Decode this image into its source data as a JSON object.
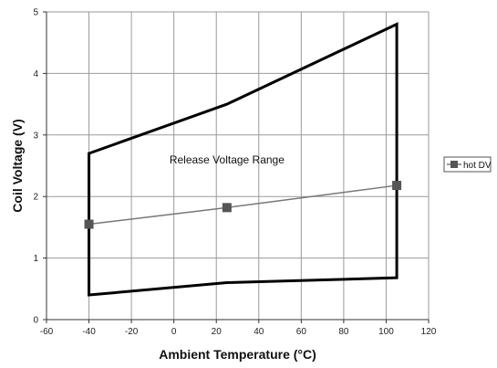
{
  "chart_data": {
    "type": "line",
    "title": "",
    "xlabel": "Ambient Temperature (°C)",
    "ylabel": "Coil Voltage (V)",
    "xlim": [
      -60,
      120
    ],
    "ylim": [
      0,
      5
    ],
    "x_ticks": [
      -60,
      -40,
      -20,
      0,
      20,
      40,
      60,
      80,
      100,
      120
    ],
    "y_ticks": [
      0,
      1,
      2,
      3,
      4,
      5
    ],
    "grid": true,
    "series": [
      {
        "name": "hot DV",
        "x": [
          -40,
          25,
          105
        ],
        "values": [
          1.55,
          1.82,
          2.18
        ],
        "color": "#777777",
        "marker_color": "#555555",
        "marker": "square"
      }
    ],
    "envelope": {
      "x": [
        -40,
        25,
        105,
        105,
        25,
        -40
      ],
      "y": [
        2.7,
        3.5,
        4.8,
        0.68,
        0.6,
        0.4
      ],
      "color": "#000000"
    },
    "annotation": {
      "text": "Release Voltage Range",
      "x": 25,
      "y": 2.6
    },
    "legend": {
      "position": "right",
      "entries": [
        "hot DV"
      ]
    }
  }
}
